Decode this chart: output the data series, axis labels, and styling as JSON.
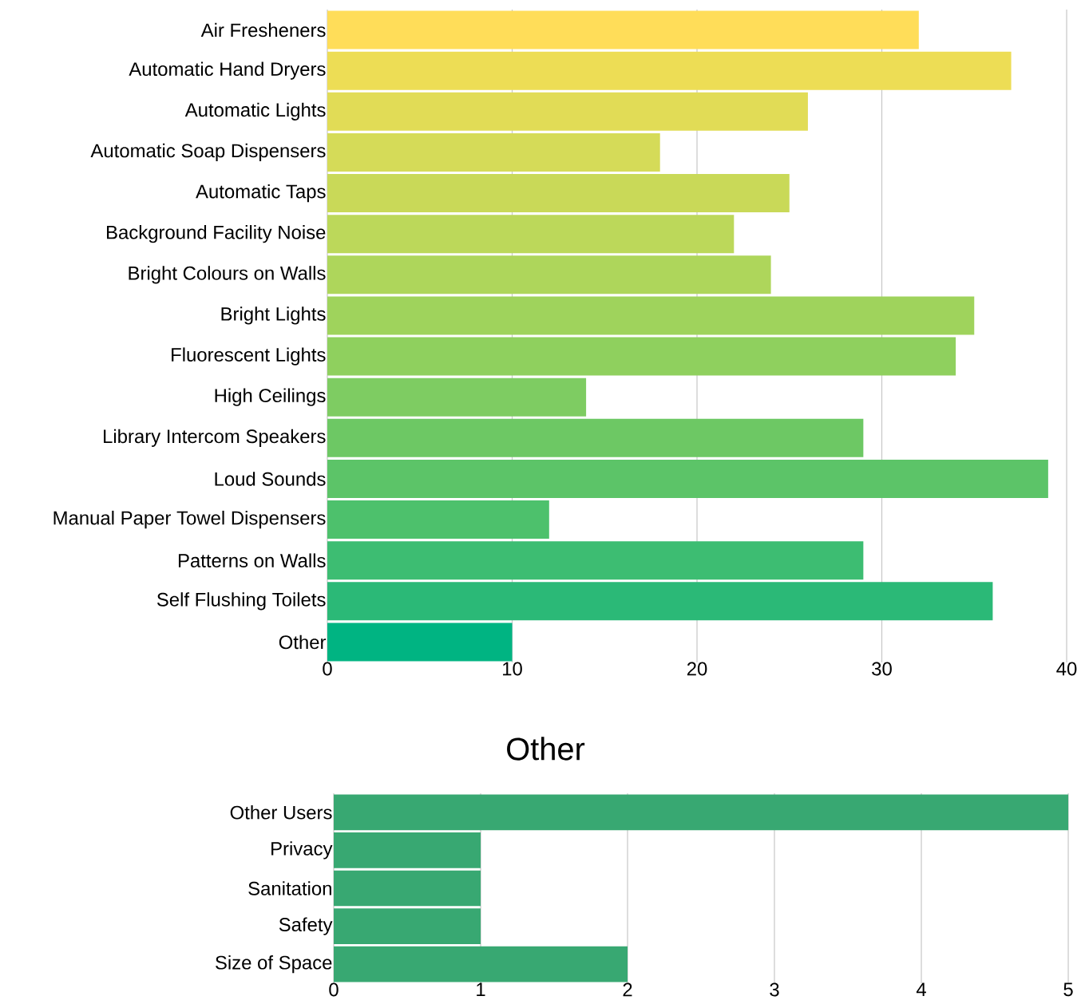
{
  "chart_data": [
    {
      "type": "bar",
      "orientation": "horizontal",
      "grid": "x",
      "categories": [
        "Air Fresheners",
        "Automatic Hand Dryers",
        "Automatic Lights",
        "Automatic Soap Dispensers",
        "Automatic Taps",
        "Background Facility Noise",
        "Bright Colours on Walls",
        "Bright Lights",
        "Fluorescent Lights",
        "High Ceilings",
        "Library Intercom Speakers",
        "Loud Sounds",
        "Manual Paper Towel Dispensers",
        "Patterns on Walls",
        "Self Flushing Toilets",
        "Other"
      ],
      "values": [
        32,
        37,
        26,
        18,
        25,
        22,
        24,
        35,
        34,
        14,
        29,
        39,
        12,
        29,
        36,
        10
      ],
      "colors": [
        "#ffdd59",
        "#eddd55",
        "#e1dc56",
        "#d5db58",
        "#c9d958",
        "#bcd85a",
        "#aed65b",
        "#9fd35c",
        "#8fd05e",
        "#7ecc62",
        "#6dc864",
        "#5cc468",
        "#4dc16c",
        "#3dbd72",
        "#2bb977",
        "#00b482"
      ],
      "xlim": [
        0,
        40
      ],
      "xticks": [
        0,
        10,
        20,
        30,
        40
      ]
    },
    {
      "type": "bar",
      "orientation": "horizontal",
      "grid": "x",
      "title": "Other",
      "categories": [
        "Other Users",
        "Privacy",
        "Sanitation",
        "Safety",
        "Size of Space"
      ],
      "values": [
        5,
        1,
        1,
        1,
        2
      ],
      "colors": [
        "#38a872",
        "#38a872",
        "#38a872",
        "#38a872",
        "#38a872"
      ],
      "xlim": [
        0,
        5
      ],
      "xticks": [
        0,
        1,
        2,
        3,
        4,
        5
      ]
    }
  ]
}
